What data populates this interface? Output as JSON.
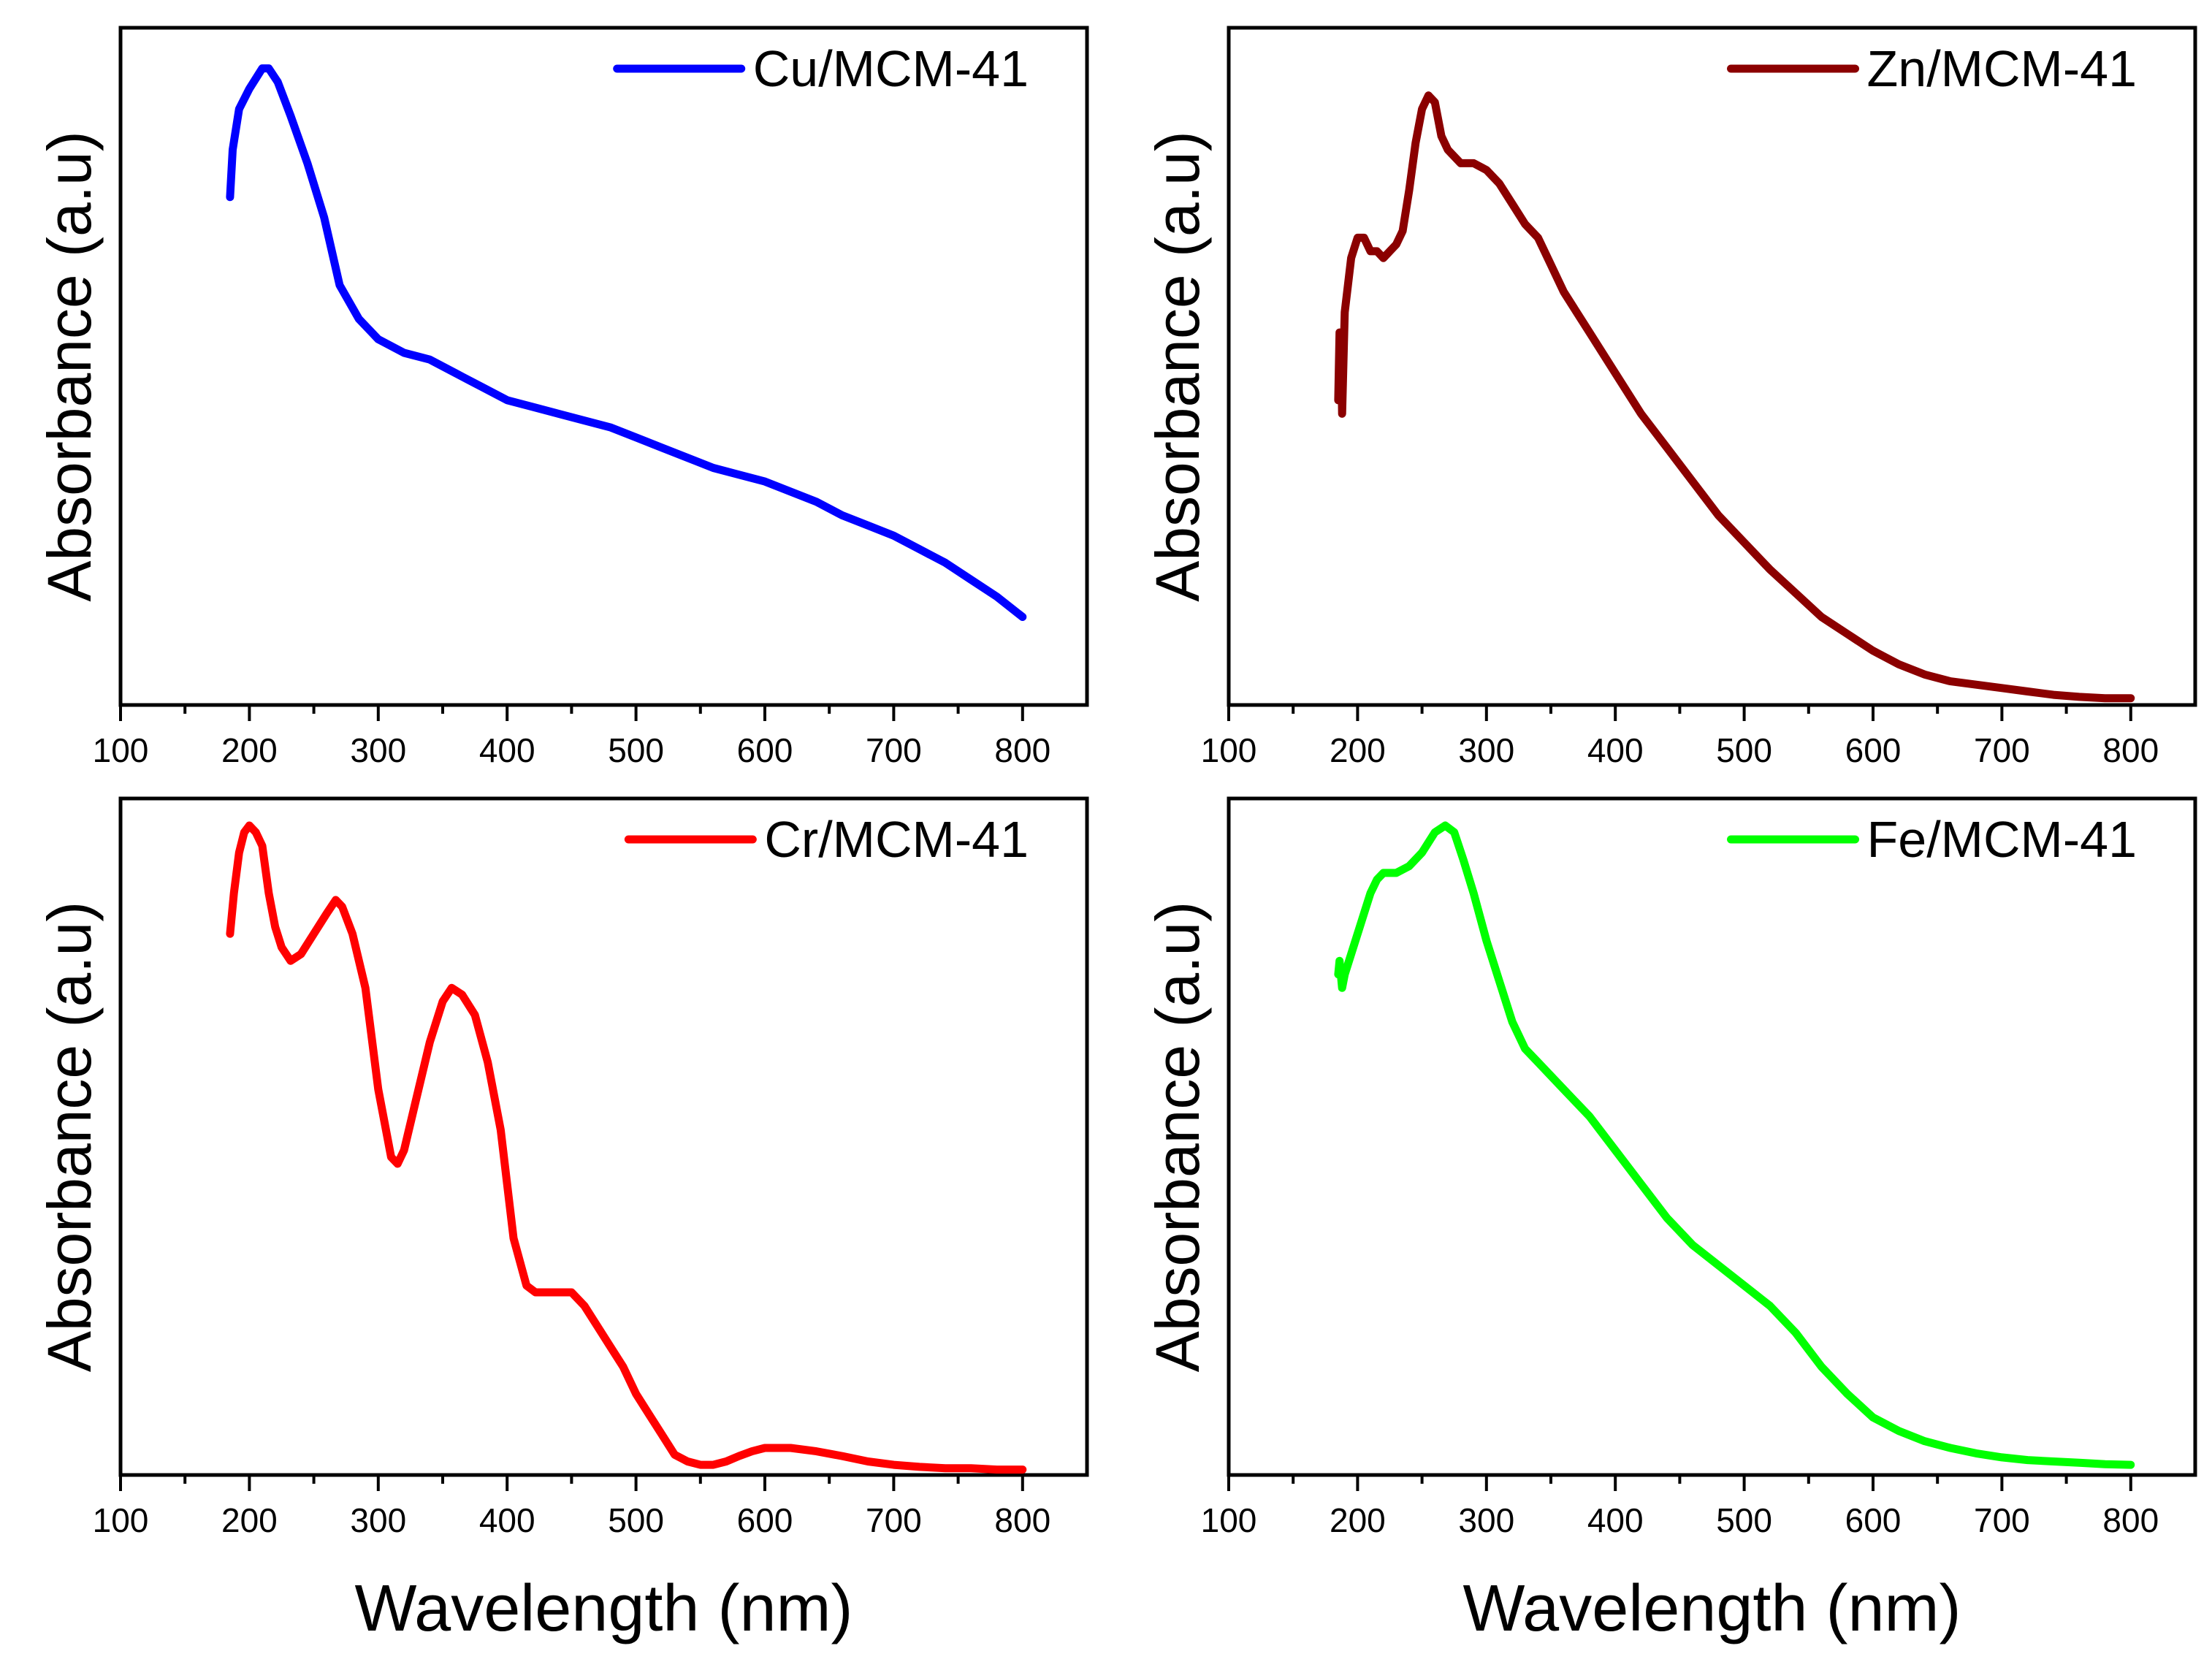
{
  "figure": {
    "x_axis_title": "Wavelength (nm)"
  },
  "chart_data": [
    {
      "type": "line",
      "title": "",
      "legend": "Cu/MCM-41",
      "legend_position": "top-right",
      "color": "#0000ff",
      "xlabel": "Wavelength (nm)",
      "ylabel": "Absorbance (a.u)",
      "xlim": [
        100,
        850
      ],
      "ylim": [
        0,
        1
      ],
      "xticks": [
        100,
        200,
        300,
        400,
        500,
        600,
        700,
        800
      ],
      "y_ticks_shown": false,
      "x": [
        185,
        187,
        192,
        200,
        210,
        215,
        222,
        232,
        245,
        258,
        270,
        285,
        300,
        320,
        340,
        360,
        380,
        400,
        420,
        440,
        460,
        480,
        500,
        520,
        540,
        560,
        580,
        600,
        620,
        640,
        660,
        680,
        700,
        720,
        740,
        760,
        780,
        800
      ],
      "y": [
        0.75,
        0.82,
        0.88,
        0.91,
        0.94,
        0.94,
        0.92,
        0.87,
        0.8,
        0.72,
        0.62,
        0.57,
        0.54,
        0.52,
        0.51,
        0.49,
        0.47,
        0.45,
        0.44,
        0.43,
        0.42,
        0.41,
        0.395,
        0.38,
        0.365,
        0.35,
        0.34,
        0.33,
        0.315,
        0.3,
        0.28,
        0.265,
        0.25,
        0.23,
        0.21,
        0.185,
        0.16,
        0.13
      ]
    },
    {
      "type": "line",
      "title": "",
      "legend": "Zn/MCM-41",
      "legend_position": "top-right",
      "color": "#8b0000",
      "xlabel": "Wavelength (nm)",
      "ylabel": "Absorbance (a.u)",
      "xlim": [
        100,
        850
      ],
      "ylim": [
        0,
        1
      ],
      "xticks": [
        100,
        200,
        300,
        400,
        500,
        600,
        700,
        800
      ],
      "y_ticks_shown": false,
      "x": [
        185,
        186,
        187,
        188,
        190,
        195,
        200,
        205,
        210,
        215,
        220,
        225,
        230,
        235,
        240,
        245,
        250,
        255,
        260,
        265,
        270,
        280,
        290,
        300,
        310,
        320,
        330,
        340,
        350,
        360,
        380,
        400,
        420,
        440,
        460,
        480,
        500,
        520,
        540,
        560,
        580,
        600,
        620,
        640,
        660,
        680,
        700,
        720,
        740,
        760,
        780,
        800
      ],
      "y": [
        0.45,
        0.55,
        0.55,
        0.43,
        0.58,
        0.66,
        0.69,
        0.69,
        0.67,
        0.67,
        0.66,
        0.67,
        0.68,
        0.7,
        0.76,
        0.83,
        0.88,
        0.9,
        0.89,
        0.84,
        0.82,
        0.8,
        0.8,
        0.79,
        0.77,
        0.74,
        0.71,
        0.69,
        0.65,
        0.61,
        0.55,
        0.49,
        0.43,
        0.38,
        0.33,
        0.28,
        0.24,
        0.2,
        0.165,
        0.13,
        0.105,
        0.08,
        0.06,
        0.045,
        0.035,
        0.03,
        0.025,
        0.02,
        0.015,
        0.012,
        0.01,
        0.01
      ]
    },
    {
      "type": "line",
      "title": "",
      "legend": "Cr/MCM-41",
      "legend_position": "top-right",
      "color": "#ff0000",
      "xlabel": "Wavelength (nm)",
      "ylabel": "Absorbance (a.u)",
      "xlim": [
        100,
        850
      ],
      "ylim": [
        0,
        1
      ],
      "xticks": [
        100,
        200,
        300,
        400,
        500,
        600,
        700,
        800
      ],
      "y_ticks_shown": false,
      "x": [
        185,
        188,
        192,
        196,
        200,
        205,
        210,
        215,
        220,
        225,
        232,
        240,
        250,
        260,
        267,
        272,
        280,
        290,
        300,
        310,
        315,
        320,
        330,
        340,
        350,
        357,
        365,
        375,
        385,
        395,
        405,
        415,
        422,
        430,
        440,
        450,
        460,
        470,
        480,
        490,
        500,
        510,
        520,
        530,
        540,
        550,
        560,
        570,
        580,
        590,
        600,
        620,
        640,
        660,
        680,
        700,
        720,
        740,
        760,
        780,
        800
      ],
      "y": [
        0.8,
        0.86,
        0.92,
        0.95,
        0.96,
        0.95,
        0.93,
        0.86,
        0.81,
        0.78,
        0.76,
        0.77,
        0.8,
        0.83,
        0.85,
        0.84,
        0.8,
        0.72,
        0.57,
        0.47,
        0.46,
        0.48,
        0.56,
        0.64,
        0.7,
        0.72,
        0.71,
        0.68,
        0.61,
        0.51,
        0.35,
        0.28,
        0.27,
        0.27,
        0.27,
        0.27,
        0.25,
        0.22,
        0.19,
        0.16,
        0.12,
        0.09,
        0.06,
        0.03,
        0.02,
        0.015,
        0.015,
        0.02,
        0.028,
        0.035,
        0.04,
        0.04,
        0.035,
        0.028,
        0.02,
        0.015,
        0.012,
        0.01,
        0.01,
        0.008,
        0.008
      ]
    },
    {
      "type": "line",
      "title": "",
      "legend": "Fe/MCM-41",
      "legend_position": "top-right",
      "color": "#00ff00",
      "xlabel": "Wavelength (nm)",
      "ylabel": "Absorbance (a.u)",
      "xlim": [
        100,
        850
      ],
      "ylim": [
        0,
        1
      ],
      "xticks": [
        100,
        200,
        300,
        400,
        500,
        600,
        700,
        800
      ],
      "y_ticks_shown": false,
      "x": [
        185,
        186,
        188,
        190,
        195,
        200,
        205,
        210,
        215,
        220,
        230,
        240,
        250,
        260,
        268,
        275,
        282,
        290,
        300,
        310,
        320,
        330,
        340,
        360,
        380,
        400,
        420,
        440,
        460,
        480,
        500,
        520,
        540,
        560,
        580,
        600,
        620,
        640,
        660,
        680,
        700,
        720,
        740,
        760,
        780,
        800
      ],
      "y": [
        0.74,
        0.76,
        0.72,
        0.74,
        0.77,
        0.8,
        0.83,
        0.86,
        0.88,
        0.89,
        0.89,
        0.9,
        0.92,
        0.95,
        0.96,
        0.95,
        0.91,
        0.86,
        0.79,
        0.73,
        0.67,
        0.63,
        0.61,
        0.57,
        0.53,
        0.48,
        0.43,
        0.38,
        0.34,
        0.31,
        0.28,
        0.25,
        0.21,
        0.16,
        0.12,
        0.085,
        0.065,
        0.05,
        0.04,
        0.032,
        0.026,
        0.022,
        0.02,
        0.018,
        0.016,
        0.015
      ]
    }
  ]
}
